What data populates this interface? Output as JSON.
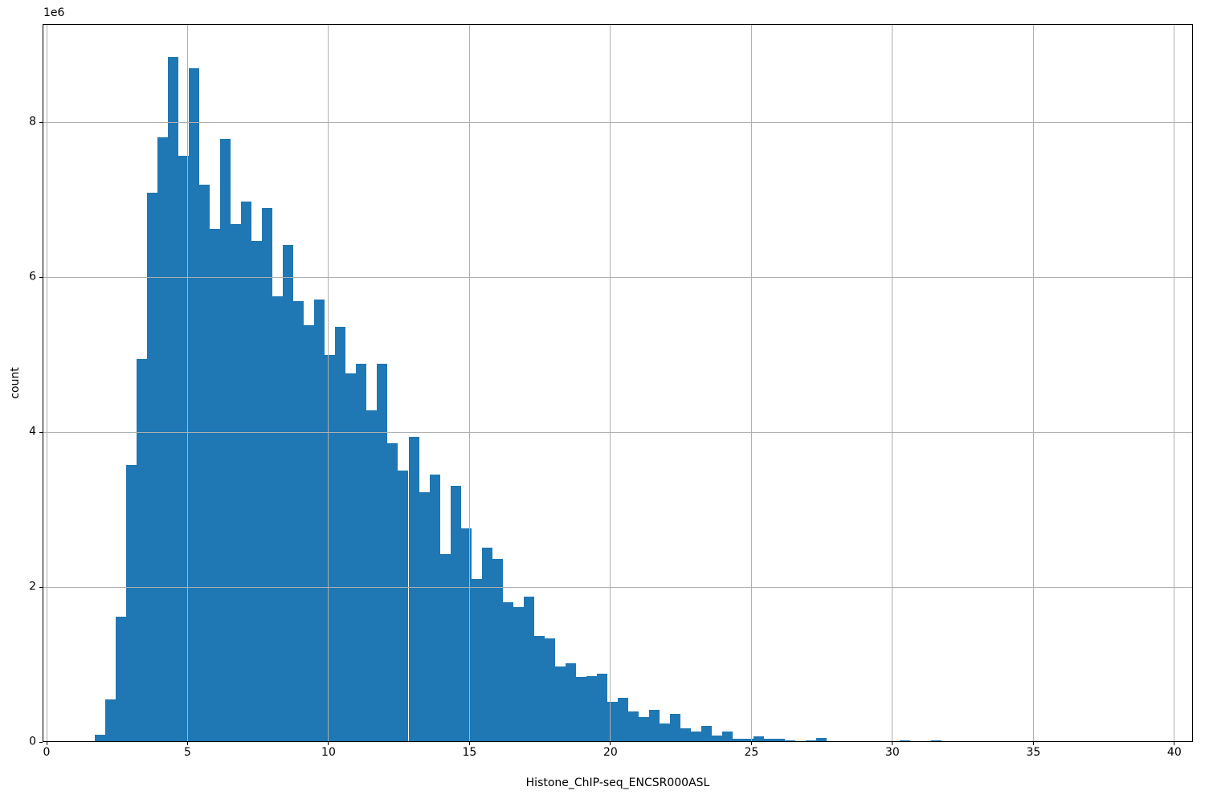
{
  "figure": {
    "background": "#ffffff"
  },
  "chart_data": {
    "type": "bar",
    "subtype": "histogram",
    "title": "",
    "xlabel": "Histone_ChIP-seq_ENCSR000ASL",
    "ylabel": "count",
    "y_offset_text": "1e6",
    "xlim": [
      -0.143,
      40.66
    ],
    "ylim": [
      0,
      9270000
    ],
    "x_ticks": [
      0,
      5,
      10,
      15,
      20,
      25,
      30,
      35,
      40
    ],
    "x_tick_labels": [
      "0",
      "5",
      "10",
      "15",
      "20",
      "25",
      "30",
      "35",
      "40"
    ],
    "y_ticks": [
      0,
      2000000,
      4000000,
      6000000,
      8000000
    ],
    "y_tick_labels": [
      "0",
      "2",
      "4",
      "6",
      "8"
    ],
    "grid": true,
    "grid_on_top": true,
    "legend_position": "none",
    "bar_color": "#1f77b4",
    "grid_color": "#b0b0b0",
    "bins": {
      "start": 1.712,
      "width": 0.3708,
      "count": 100
    },
    "counts": [
      90000,
      550000,
      1620000,
      3580000,
      4950000,
      7090000,
      7810000,
      8840000,
      7570000,
      8700000,
      7200000,
      6630000,
      7790000,
      6690000,
      6980000,
      6470000,
      6900000,
      5750000,
      6420000,
      5690000,
      5380000,
      5710000,
      5000000,
      5360000,
      4760000,
      4880000,
      4280000,
      4880000,
      3860000,
      3510000,
      3940000,
      3230000,
      3450000,
      2430000,
      3310000,
      2760000,
      2100000,
      2510000,
      2360000,
      1800000,
      1740000,
      1880000,
      1370000,
      1340000,
      970000,
      1020000,
      840000,
      850000,
      880000,
      520000,
      570000,
      390000,
      320000,
      410000,
      240000,
      360000,
      180000,
      140000,
      210000,
      80000,
      140000,
      40000,
      40000,
      70000,
      45000,
      40000,
      20000,
      0,
      20000,
      50000,
      0,
      15000,
      0,
      0,
      15000,
      0,
      0,
      25000,
      10000,
      0,
      20000,
      0,
      0,
      15000,
      15000,
      0,
      0,
      0,
      0,
      0,
      0,
      0,
      0,
      0,
      0,
      0,
      0,
      0,
      0,
      15000
    ]
  }
}
